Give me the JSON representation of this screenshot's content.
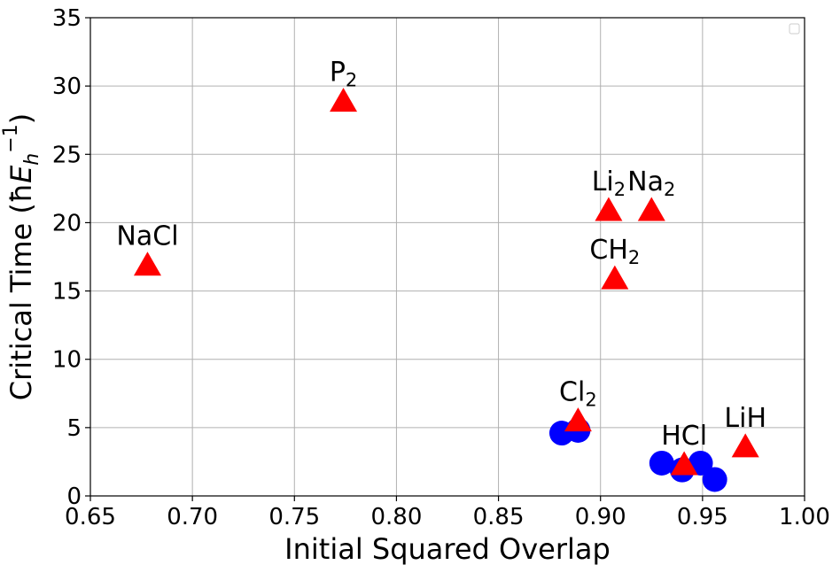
{
  "chart_data": {
    "type": "scatter",
    "xlabel": "Initial Squared Overlap",
    "ylabel": "Critical Time (ħE_h^−1)",
    "xlim": [
      0.65,
      1.0
    ],
    "ylim": [
      0,
      35
    ],
    "xticks": [
      0.65,
      0.7,
      0.75,
      0.8,
      0.85,
      0.9,
      0.95,
      1.0
    ],
    "xtick_labels": [
      "0.65",
      "0.70",
      "0.75",
      "0.80",
      "0.85",
      "0.90",
      "0.95",
      "1.00"
    ],
    "yticks": [
      0,
      5,
      10,
      15,
      20,
      25,
      30,
      35
    ],
    "ytick_labels": [
      "0",
      "5",
      "10",
      "15",
      "20",
      "25",
      "30",
      "35"
    ],
    "grid": true,
    "legend": "top-right (empty)",
    "colors": {
      "triangles": "#ff0000",
      "circles": "#0000ff",
      "grid": "#b0b0b0",
      "axes": "#000000"
    },
    "series": [
      {
        "marker": "circle",
        "color": "#0000ff",
        "points": [
          {
            "x": 0.881,
            "y": 4.6
          },
          {
            "x": 0.889,
            "y": 4.8
          },
          {
            "x": 0.93,
            "y": 2.4
          },
          {
            "x": 0.94,
            "y": 1.9
          },
          {
            "x": 0.949,
            "y": 2.4
          },
          {
            "x": 0.956,
            "y": 1.2
          }
        ]
      },
      {
        "marker": "triangle",
        "color": "#ff0000",
        "points": [
          {
            "x": 0.678,
            "y": 17.0,
            "label": "NaCl",
            "sub": ""
          },
          {
            "x": 0.774,
            "y": 29.0,
            "label": "P",
            "sub": "2"
          },
          {
            "x": 0.904,
            "y": 21.0,
            "label": "Li",
            "sub": "2"
          },
          {
            "x": 0.925,
            "y": 21.0,
            "label": "Na",
            "sub": "2"
          },
          {
            "x": 0.907,
            "y": 16.0,
            "label": "CH",
            "sub": "2"
          },
          {
            "x": 0.889,
            "y": 5.6,
            "label": "Cl",
            "sub": "2"
          },
          {
            "x": 0.941,
            "y": 2.4,
            "label": "HCl",
            "sub": ""
          },
          {
            "x": 0.971,
            "y": 3.7,
            "label": "LiH",
            "sub": ""
          }
        ]
      }
    ]
  }
}
